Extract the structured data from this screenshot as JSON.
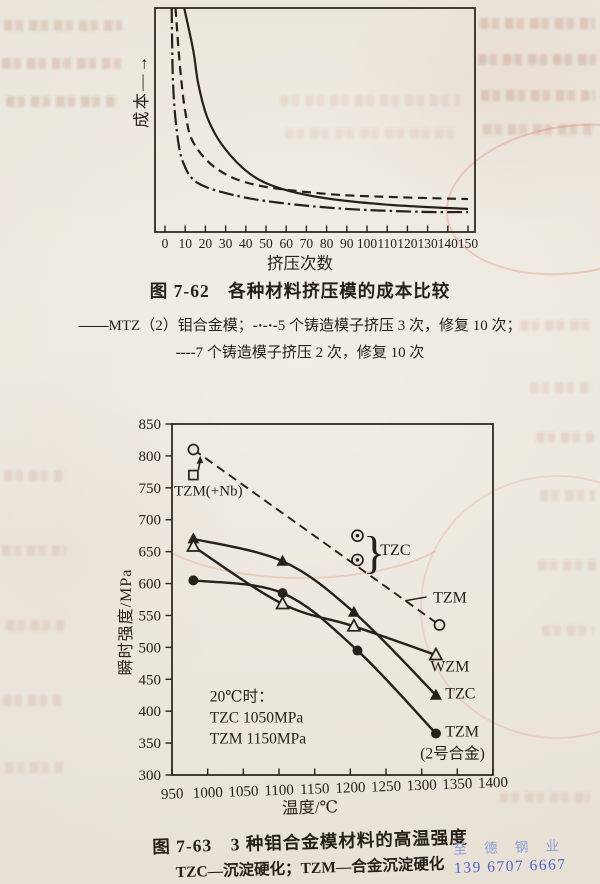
{
  "colors": {
    "paper": "#ece7de",
    "ink": "#262118",
    "watermark_name": "#8e9cd6",
    "watermark_phone": "#4f63c8"
  },
  "figure62": {
    "ylabel": "成本",
    "ylabel_arrow": "—→",
    "xlabel": "挤压次数",
    "caption": "图 7-62　各种材料挤压模的成本比较",
    "legend_row1": {
      "m1": "——",
      "t1": "MTZ（2）钼合金模；",
      "m2": "-·-·-",
      "t2": "5 个铸造模子挤压 3 次，修复 10 次；"
    },
    "legend_row2": {
      "m1": "----",
      "t1": "7 个铸造模子挤压 2 次，修复 10 次"
    }
  },
  "figure63": {
    "ylabel": "瞬时强度/MPa",
    "xlabel": "温度/℃",
    "caption": "图 7-63　3 种钼合金模材料的高温强度",
    "subcaption": "TZC—沉淀硬化；TZM—合金沉淀硬化"
  },
  "watermark": {
    "name": "至 德 钢 业",
    "phone": "139 6707 6667"
  },
  "chart_data": [
    {
      "id": "fig-7-62",
      "type": "line",
      "title": "图7-62 各种材料挤压模的成本比较",
      "xlabel": "挤压次数",
      "ylabel": "成本（相对值，轴无刻度）",
      "xlim": [
        0,
        150
      ],
      "ylim": [
        0,
        100
      ],
      "x_ticks": [
        0,
        10,
        20,
        30,
        40,
        50,
        60,
        70,
        80,
        90,
        100,
        110,
        120,
        130,
        140,
        150
      ],
      "y_ticks": [],
      "grid": false,
      "legend_position": "below",
      "series": [
        {
          "name": "MTZ（2）钼合金模",
          "style": "solid",
          "points": [
            [
              9.5,
              100
            ],
            [
              14,
              81
            ],
            [
              16.5,
              66
            ],
            [
              21,
              51
            ],
            [
              29,
              38
            ],
            [
              42,
              26
            ],
            [
              57,
              19.5
            ],
            [
              80,
              15
            ],
            [
              113,
              12
            ],
            [
              150,
              10.3
            ]
          ]
        },
        {
          "name": "5个铸造模子挤压3次，修复10次",
          "style": "dashdot",
          "points": [
            [
              3.3,
              100
            ],
            [
              4,
              66
            ],
            [
              6,
              44
            ],
            [
              9,
              31
            ],
            [
              16,
              22
            ],
            [
              34,
              16.5
            ],
            [
              57,
              13
            ],
            [
              90,
              10.3
            ],
            [
              127,
              9
            ],
            [
              150,
              8.9
            ]
          ]
        },
        {
          "name": "7个铸造模子挤压2次，修复10次",
          "style": "dashed",
          "points": [
            [
              5.2,
              100
            ],
            [
              7.4,
              74
            ],
            [
              10,
              54
            ],
            [
              14,
              40
            ],
            [
              26,
              28
            ],
            [
              45,
              21
            ],
            [
              80,
              17
            ],
            [
              113,
              15.6
            ],
            [
              150,
              14.7
            ]
          ]
        }
      ]
    },
    {
      "id": "fig-7-63",
      "type": "line",
      "title": "图7-63 3种钼合金模材料的高温强度",
      "xlabel": "温度/℃",
      "ylabel": "瞬时强度/MPa",
      "xlim": [
        950,
        1400
      ],
      "ylim": [
        300,
        850
      ],
      "x_ticks": [
        950,
        1000,
        1050,
        1100,
        1150,
        1200,
        1250,
        1300,
        1350,
        1400
      ],
      "y_ticks": [
        300,
        350,
        400,
        450,
        500,
        550,
        600,
        650,
        700,
        750,
        800,
        850
      ],
      "grid": false,
      "series": [
        {
          "name": "TZM",
          "style": "dashed",
          "marker": "open-circle",
          "points": [
            [
              980,
              810
            ],
            [
              1325,
              535
            ]
          ]
        },
        {
          "name": "TZC",
          "style": "solid",
          "marker": "filled-triangle",
          "points": [
            [
              980,
              670
            ],
            [
              1105,
              635
            ],
            [
              1205,
              555
            ],
            [
              1320,
              425
            ]
          ]
        },
        {
          "name": "WZM",
          "style": "solid",
          "marker": "open-triangle",
          "points": [
            [
              980,
              658
            ],
            [
              1105,
              568
            ],
            [
              1205,
              533
            ],
            [
              1320,
              488
            ]
          ]
        },
        {
          "name": "TZM（2号合金）",
          "style": "solid",
          "marker": "filled-circle",
          "points": [
            [
              980,
              605
            ],
            [
              1105,
              585
            ],
            [
              1210,
              495
            ],
            [
              1320,
              365
            ]
          ]
        },
        {
          "name": "TZM(+Nb)",
          "style": "none",
          "marker": "open-square",
          "points": [
            [
              980,
              770
            ]
          ]
        },
        {
          "name": "TZC附加点",
          "style": "none",
          "marker": "circle-dot",
          "points": [
            [
              1210,
              675
            ],
            [
              1210,
              637
            ]
          ]
        }
      ],
      "annotations": {
        "note": {
          "x": 1003,
          "y": 415,
          "lines": [
            "20℃时：",
            "TZC 1050MPa",
            "TZM 1150MPa"
          ]
        },
        "labels": [
          {
            "text": "TZM(+Nb)",
            "x": 953,
            "y": 738,
            "size": 15
          },
          {
            "text": "TZC",
            "x": 1242,
            "y": 645,
            "size": 16
          },
          {
            "text": "TZM",
            "x": 1316,
            "y": 570,
            "size": 16
          },
          {
            "text": "WZM",
            "x": 1312,
            "y": 462,
            "size": 16
          },
          {
            "text": "TZC",
            "x": 1333,
            "y": 420,
            "size": 16
          },
          {
            "text": "TZM",
            "x": 1333,
            "y": 360,
            "size": 16
          },
          {
            "text": "(2号合金)",
            "x": 1298,
            "y": 326,
            "size": 15.5
          }
        ],
        "brace": {
          "x": 1218,
          "y_top": 675,
          "y_bottom": 637
        },
        "pointer": {
          "from": [
            1277,
            573
          ],
          "to": [
            1307,
            579
          ]
        },
        "arrow": {
          "from": [
            987,
            778
          ],
          "to": [
            989,
            800
          ]
        }
      }
    }
  ]
}
